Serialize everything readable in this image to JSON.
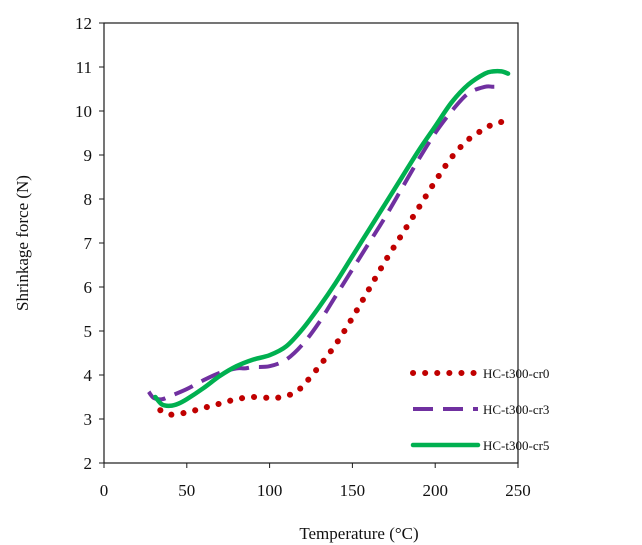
{
  "chart_data": {
    "type": "line",
    "title": "",
    "xlabel": "Temperature (°C)",
    "ylabel": "Shrinkage force (N)",
    "xlim": [
      0,
      250
    ],
    "ylim": [
      2,
      12
    ],
    "xticks": [
      0,
      50,
      100,
      150,
      200,
      250
    ],
    "yticks": [
      2,
      3,
      4,
      5,
      6,
      7,
      8,
      9,
      10,
      11,
      12
    ],
    "grid": false,
    "legend_position": "bottom-right",
    "series": [
      {
        "name": "HC-t300-cr0",
        "color": "#c00000",
        "style": "dotted",
        "x": [
          34,
          40,
          50,
          60,
          70,
          80,
          90,
          100,
          108,
          115,
          120,
          130,
          140,
          150,
          160,
          170,
          180,
          190,
          200,
          210,
          220,
          230,
          235,
          240,
          244
        ],
        "y": [
          3.2,
          3.1,
          3.15,
          3.25,
          3.35,
          3.45,
          3.5,
          3.48,
          3.5,
          3.6,
          3.75,
          4.2,
          4.7,
          5.3,
          5.95,
          6.6,
          7.2,
          7.8,
          8.4,
          8.95,
          9.35,
          9.6,
          9.7,
          9.75,
          9.7
        ]
      },
      {
        "name": "HC-t300-cr3",
        "color": "#7030a0",
        "style": "dashed",
        "x": [
          27,
          30,
          35,
          40,
          50,
          60,
          70,
          80,
          85,
          90,
          100,
          110,
          120,
          130,
          140,
          150,
          160,
          170,
          180,
          190,
          200,
          210,
          220,
          230,
          235,
          240
        ],
        "y": [
          3.62,
          3.48,
          3.45,
          3.52,
          3.68,
          3.88,
          4.05,
          4.15,
          4.15,
          4.18,
          4.2,
          4.35,
          4.7,
          5.2,
          5.8,
          6.4,
          7.0,
          7.6,
          8.25,
          8.9,
          9.5,
          10.0,
          10.4,
          10.55,
          10.55,
          10.55
        ]
      },
      {
        "name": "HC-t300-cr5",
        "color": "#00b050",
        "style": "solid",
        "x": [
          31,
          35,
          40,
          45,
          50,
          60,
          70,
          80,
          90,
          100,
          110,
          120,
          130,
          140,
          150,
          160,
          170,
          180,
          190,
          200,
          210,
          220,
          230,
          235,
          240,
          244
        ],
        "y": [
          3.5,
          3.33,
          3.3,
          3.35,
          3.45,
          3.7,
          3.98,
          4.2,
          4.35,
          4.45,
          4.65,
          5.05,
          5.55,
          6.1,
          6.7,
          7.3,
          7.9,
          8.5,
          9.1,
          9.65,
          10.2,
          10.6,
          10.85,
          10.9,
          10.9,
          10.85
        ]
      }
    ]
  }
}
